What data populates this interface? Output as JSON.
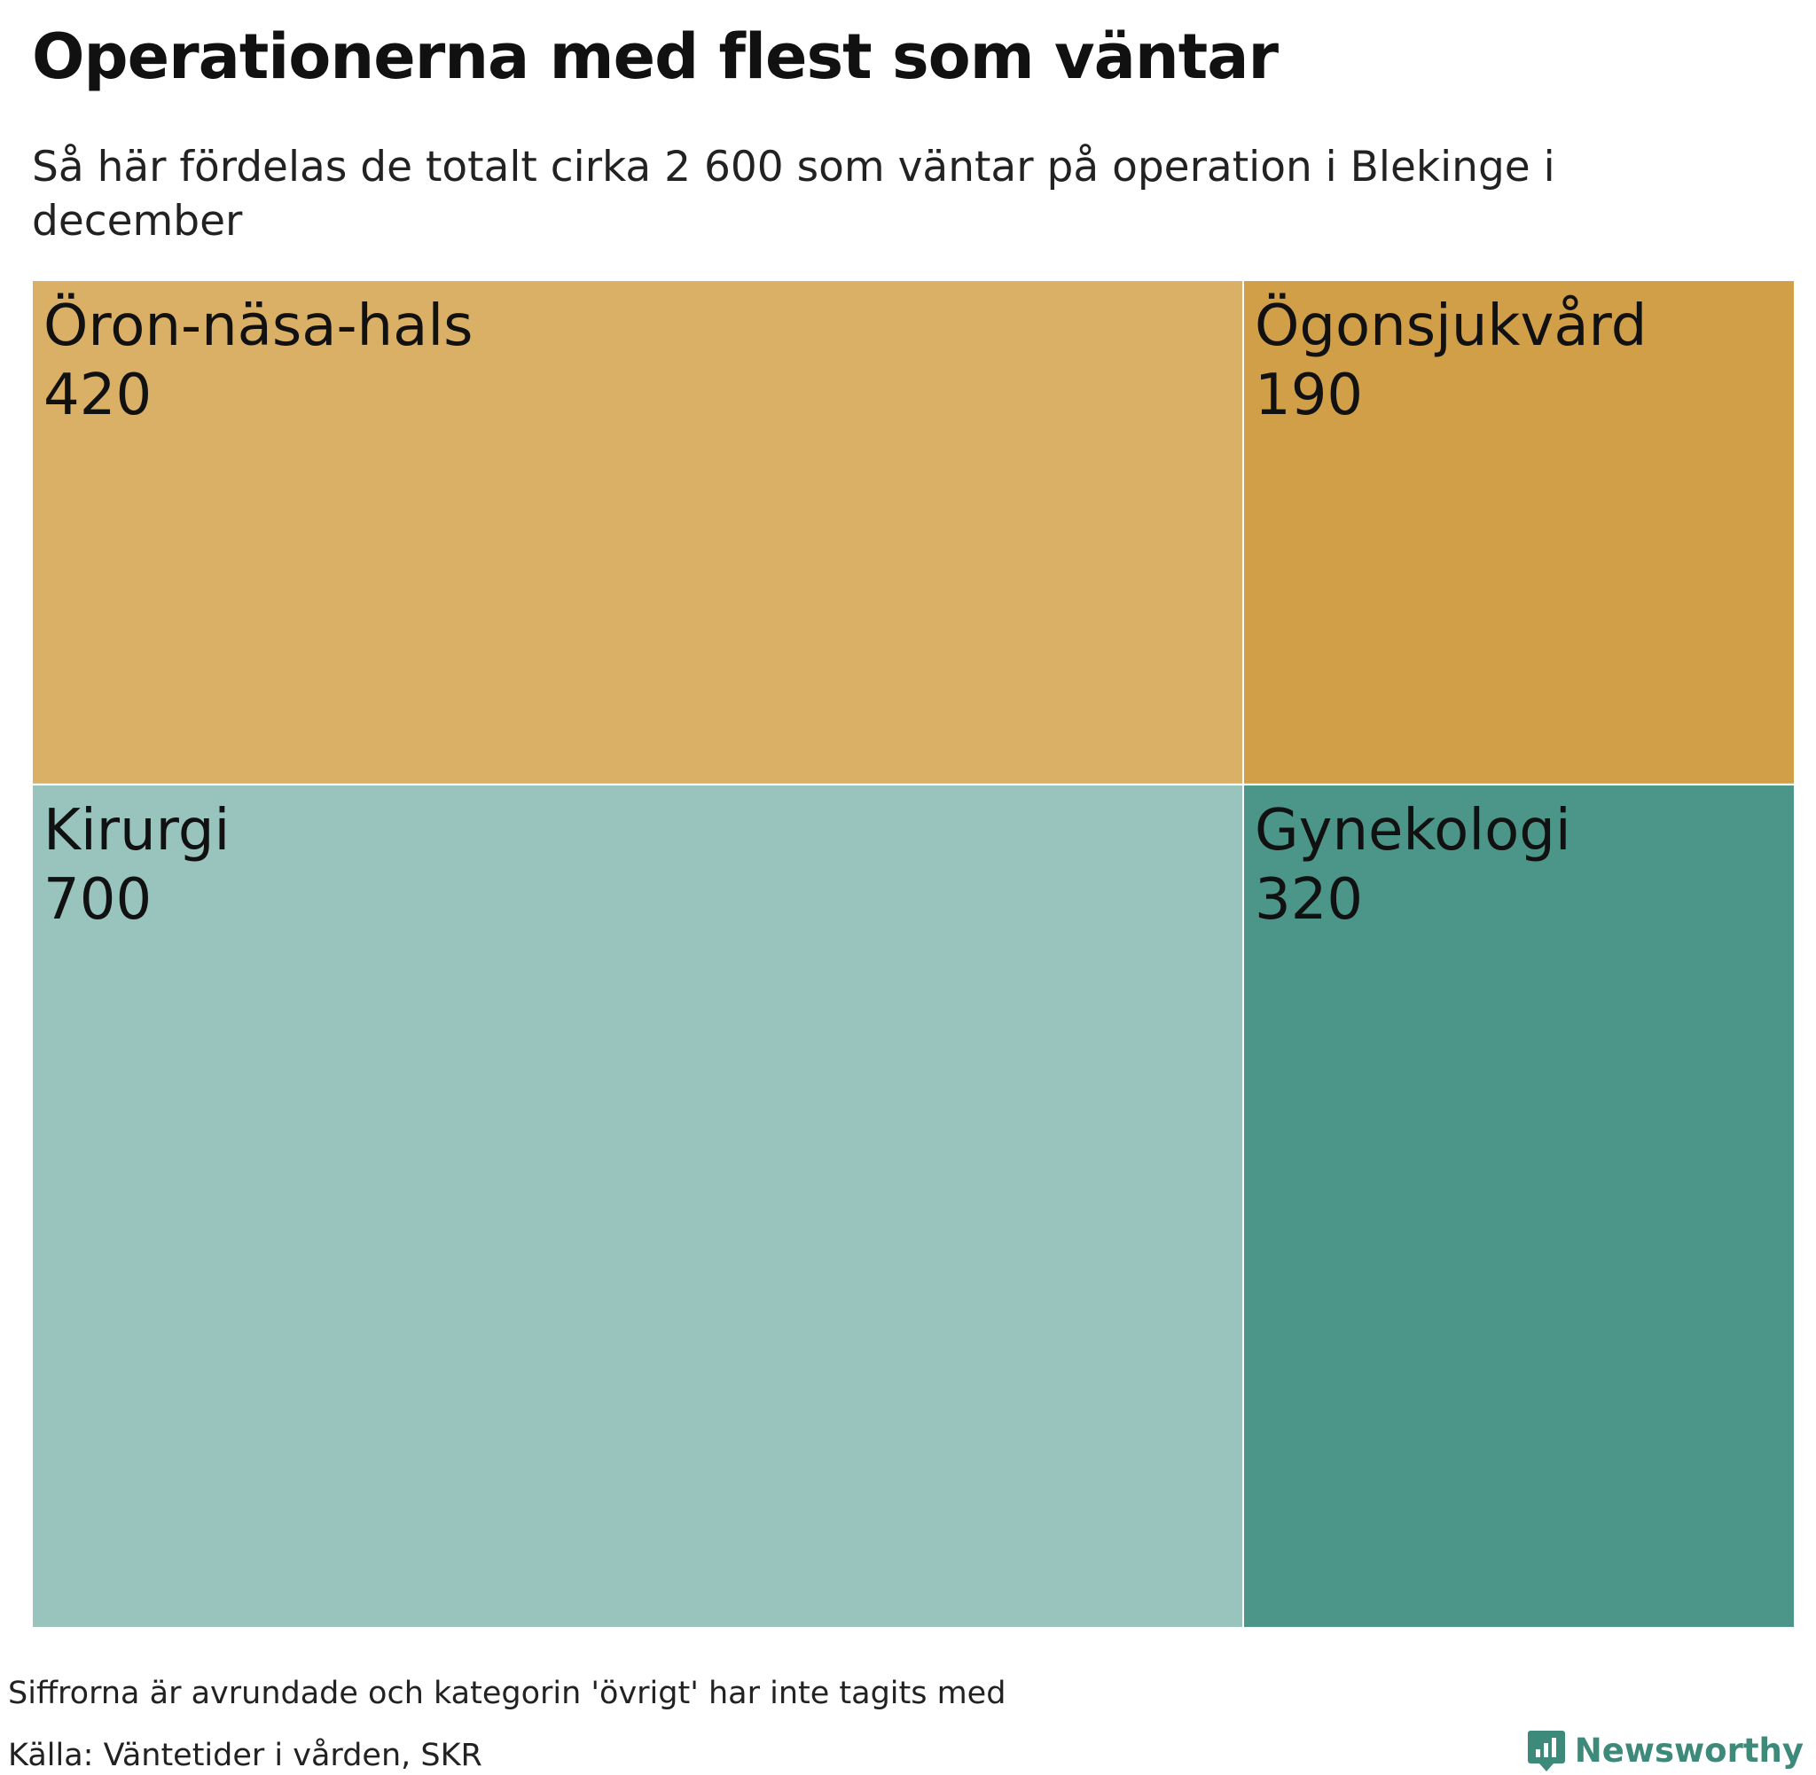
{
  "header": {
    "title": "Operationerna med flest som väntar",
    "subtitle": "Så här fördelas de totalt cirka 2 600 som väntar på operation i Blekinge i december"
  },
  "chart_data": {
    "type": "treemap",
    "title": "Operationerna med flest som väntar",
    "subtitle": "Så här fördelas de totalt cirka 2 600 som väntar på operation i Blekinge i december",
    "items": [
      {
        "label": "Kirurgi",
        "value": 700,
        "color": "#98c4bd"
      },
      {
        "label": "Öron-näsa-hals",
        "value": 420,
        "color": "#d9b065"
      },
      {
        "label": "Gynekologi",
        "value": 320,
        "color": "#4c9689"
      },
      {
        "label": "Ögonsjukvård",
        "value": 190,
        "color": "#d29f49"
      }
    ]
  },
  "footer": {
    "note": "Siffrorna är avrundade och kategorin 'övrigt' har inte tagits med",
    "source": "Källa: Väntetider i vården, SKR",
    "brand": "Newsworthy",
    "brand_color": "#3d8a7a",
    "brand_icon": "newsworthy-logo-icon"
  }
}
